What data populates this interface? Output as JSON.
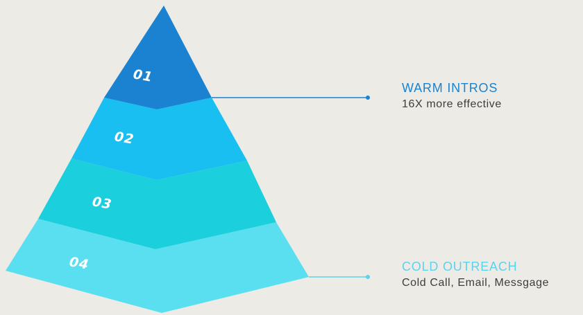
{
  "tiers": [
    {
      "label": "01",
      "color": "#1a82d1"
    },
    {
      "label": "02",
      "color": "#18bff0"
    },
    {
      "label": "03",
      "color": "#1ccfdc"
    },
    {
      "label": "04",
      "color": "#5adff0"
    }
  ],
  "callouts": {
    "warm": {
      "title": "WARM INTROS",
      "subtitle": "16X more effective",
      "color": "#1a82cf"
    },
    "cold": {
      "title": "COLD OUTREACH",
      "subtitle": "Cold Call, Email, Messgage",
      "color": "#5cd2ec"
    }
  }
}
